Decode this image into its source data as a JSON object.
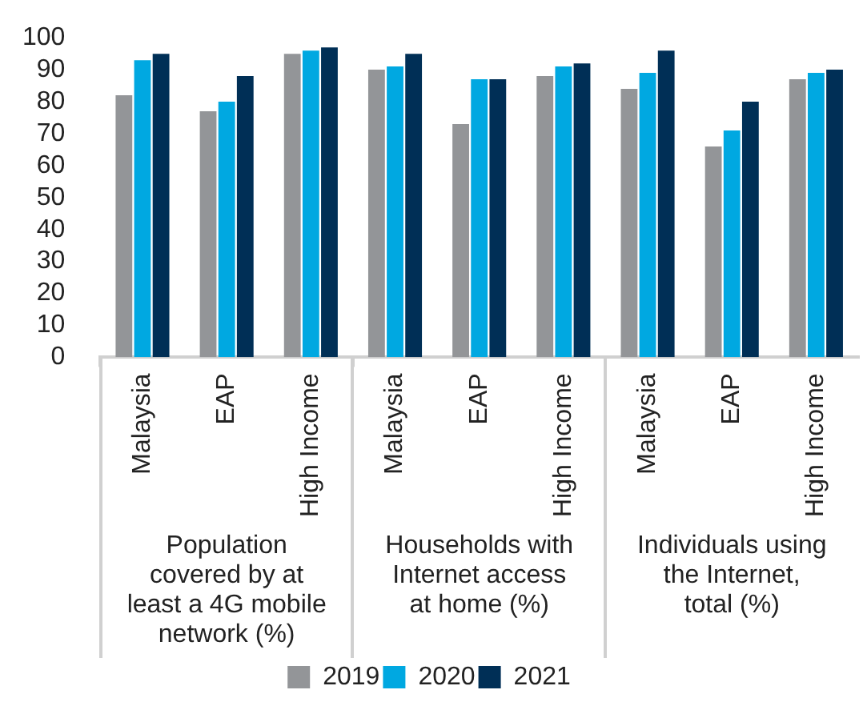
{
  "chart_data": {
    "type": "bar",
    "categories": [
      "Malaysia",
      "EAP",
      "High Income",
      "Malaysia",
      "EAP",
      "High Income",
      "Malaysia",
      "EAP",
      "High Income"
    ],
    "series": [
      {
        "name": "2019",
        "color": "#939598",
        "values": [
          82,
          77,
          95,
          90,
          73,
          88,
          84,
          66,
          87
        ]
      },
      {
        "name": "2020",
        "color": "#00a8e1",
        "values": [
          93,
          80,
          96,
          91,
          87,
          91,
          89,
          71,
          89
        ]
      },
      {
        "name": "2021",
        "color": "#002f56",
        "values": [
          95,
          88,
          97,
          95,
          87,
          92,
          96,
          80,
          90
        ]
      }
    ],
    "ylim": [
      0,
      100
    ],
    "yticks": [
      0,
      10,
      20,
      30,
      40,
      50,
      60,
      70,
      80,
      90,
      100
    ],
    "grid": false,
    "legend": "bottom",
    "annotations": [
      "Population\ncovered by at\nleast a 4G mobile\nnetwork (%)",
      "Households with\nInternet access\nat home (%)",
      "Individuals using\nthe Internet,\ntotal (%)"
    ]
  }
}
